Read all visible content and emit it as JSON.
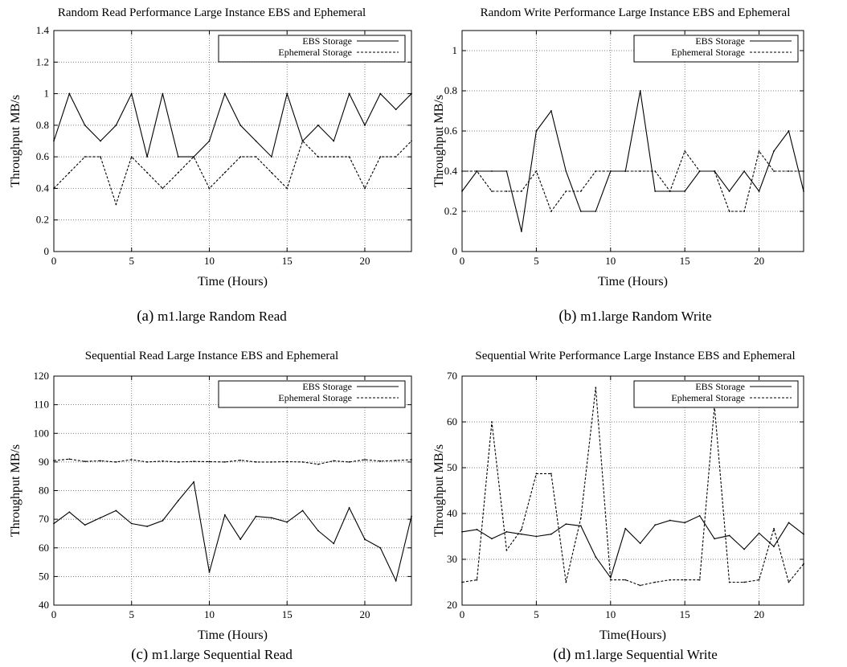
{
  "chart_data": [
    {
      "type": "line",
      "title": "Random Read Performance Large Instance EBS and Ephemeral",
      "xlabel": "Time (Hours)",
      "ylabel": "Throughput MB/s",
      "caption_letter": "(a)",
      "caption_text": "m1.large Random Read",
      "xlim": [
        0,
        23
      ],
      "ylim": [
        0,
        1.4
      ],
      "xticks": [
        0,
        5,
        10,
        15,
        20
      ],
      "yticks": [
        0,
        0.2,
        0.4,
        0.6,
        0.8,
        1,
        1.2,
        1.4
      ],
      "ytick_labels": [
        "0",
        "0.2",
        "0.4",
        "0.6",
        "0.8",
        "1",
        "1.2",
        "1.4"
      ],
      "grid": true,
      "legend_position": "top-right",
      "series": [
        {
          "name": "EBS Storage",
          "style": "solid",
          "x": [
            0,
            1,
            2,
            3,
            4,
            5,
            6,
            7,
            8,
            9,
            10,
            11,
            12,
            13,
            14,
            15,
            16,
            17,
            18,
            19,
            20,
            21,
            22,
            23
          ],
          "values": [
            0.7,
            1.0,
            0.8,
            0.7,
            0.8,
            1.0,
            0.6,
            1.0,
            0.6,
            0.6,
            0.7,
            1.0,
            0.8,
            0.7,
            0.6,
            1.0,
            0.7,
            0.8,
            0.7,
            1.0,
            0.8,
            1.0,
            0.9,
            1.0
          ]
        },
        {
          "name": "Ephemeral Storage",
          "style": "dashed",
          "x": [
            0,
            1,
            2,
            3,
            4,
            5,
            6,
            7,
            8,
            9,
            10,
            11,
            12,
            13,
            14,
            15,
            16,
            17,
            18,
            19,
            20,
            21,
            22,
            23
          ],
          "values": [
            0.4,
            0.5,
            0.6,
            0.6,
            0.3,
            0.6,
            0.5,
            0.4,
            0.5,
            0.6,
            0.4,
            0.5,
            0.6,
            0.6,
            0.5,
            0.4,
            0.7,
            0.6,
            0.6,
            0.6,
            0.4,
            0.6,
            0.6,
            0.7
          ]
        }
      ]
    },
    {
      "type": "line",
      "title": "Random Write Performance Large Instance EBS and Ephemeral",
      "xlabel": "Time (Hours)",
      "ylabel": "Throughput MB/s",
      "caption_letter": "(b)",
      "caption_text": "m1.large Random Write",
      "xlim": [
        0,
        23
      ],
      "ylim": [
        0,
        1.1
      ],
      "xticks": [
        0,
        5,
        10,
        15,
        20
      ],
      "yticks": [
        0,
        0.2,
        0.4,
        0.6,
        0.8,
        1
      ],
      "ytick_labels": [
        "0",
        "0.2",
        "0.4",
        "0.6",
        "0.8",
        "1"
      ],
      "grid": true,
      "legend_position": "top-right",
      "series": [
        {
          "name": "EBS Storage",
          "style": "solid",
          "x": [
            0,
            1,
            2,
            3,
            4,
            5,
            6,
            7,
            8,
            9,
            10,
            11,
            12,
            13,
            14,
            15,
            16,
            17,
            18,
            19,
            20,
            21,
            22,
            23
          ],
          "values": [
            0.3,
            0.4,
            0.4,
            0.4,
            0.1,
            0.6,
            0.7,
            0.4,
            0.2,
            0.2,
            0.4,
            0.4,
            0.8,
            0.3,
            0.3,
            0.3,
            0.4,
            0.4,
            0.3,
            0.4,
            0.3,
            0.5,
            0.6,
            0.3
          ]
        },
        {
          "name": "Ephemeral Storage",
          "style": "dashed",
          "x": [
            0,
            1,
            2,
            3,
            4,
            5,
            6,
            7,
            8,
            9,
            10,
            11,
            12,
            13,
            14,
            15,
            16,
            17,
            18,
            19,
            20,
            21,
            22,
            23
          ],
          "values": [
            0.4,
            0.4,
            0.3,
            0.3,
            0.3,
            0.4,
            0.2,
            0.3,
            0.3,
            0.4,
            0.4,
            0.4,
            0.4,
            0.4,
            0.3,
            0.5,
            0.4,
            0.4,
            0.2,
            0.2,
            0.5,
            0.4,
            0.4,
            0.4
          ]
        }
      ]
    },
    {
      "type": "line",
      "title": "Sequential Read Large Instance EBS and Ephemeral",
      "xlabel": "Time (Hours)",
      "ylabel": "Throughput MB/s",
      "caption_letter": "(c)",
      "caption_text": "m1.large Sequential Read",
      "xlim": [
        0,
        23
      ],
      "ylim": [
        40,
        120
      ],
      "xticks": [
        0,
        5,
        10,
        15,
        20
      ],
      "yticks": [
        40,
        50,
        60,
        70,
        80,
        90,
        100,
        110,
        120
      ],
      "ytick_labels": [
        "40",
        "50",
        "60",
        "70",
        "80",
        "90",
        "100",
        "110",
        "120"
      ],
      "grid": true,
      "legend_position": "top-right",
      "series": [
        {
          "name": "EBS Storage",
          "style": "solid",
          "x": [
            0,
            1,
            2,
            3,
            4,
            5,
            6,
            7,
            8,
            9,
            10,
            11,
            12,
            13,
            14,
            15,
            16,
            17,
            18,
            19,
            20,
            21,
            22,
            23
          ],
          "values": [
            68.5,
            72.5,
            68,
            70.5,
            73,
            68.5,
            67.5,
            69.5,
            76.5,
            83,
            51.5,
            71.5,
            63,
            71,
            70.5,
            69,
            73,
            66,
            61.5,
            74,
            63,
            60,
            48.5,
            71
          ]
        },
        {
          "name": "Ephemeral Storage",
          "style": "dashed",
          "x": [
            0,
            1,
            2,
            3,
            4,
            5,
            6,
            7,
            8,
            9,
            10,
            11,
            12,
            13,
            14,
            15,
            16,
            17,
            18,
            19,
            20,
            21,
            22,
            23
          ],
          "values": [
            90.5,
            91,
            90.2,
            90.4,
            90,
            90.8,
            90,
            90.3,
            90,
            90.2,
            90.1,
            90,
            90.6,
            90,
            90,
            90.1,
            90,
            89.2,
            90.4,
            90,
            90.8,
            90.3,
            90.5,
            90.8
          ]
        }
      ]
    },
    {
      "type": "line",
      "title": "Sequential Write Performance Large Instance EBS and Ephemeral",
      "xlabel": "Time(Hours)",
      "ylabel": "Throughput MB/s",
      "caption_letter": "(d)",
      "caption_text": "m1.large Sequential Write",
      "xlim": [
        0,
        23
      ],
      "ylim": [
        20,
        70
      ],
      "xticks": [
        0,
        5,
        10,
        15,
        20
      ],
      "yticks": [
        20,
        30,
        40,
        50,
        60,
        70
      ],
      "ytick_labels": [
        "20",
        "30",
        "40",
        "50",
        "60",
        "70"
      ],
      "grid": true,
      "legend_position": "top-right",
      "series": [
        {
          "name": "EBS Storage",
          "style": "solid",
          "x": [
            0,
            1,
            2,
            3,
            4,
            5,
            6,
            7,
            8,
            9,
            10,
            11,
            12,
            13,
            14,
            15,
            16,
            17,
            18,
            19,
            20,
            21,
            22,
            23
          ],
          "values": [
            36,
            36.5,
            34.5,
            36,
            35.5,
            35,
            35.5,
            37.7,
            37.3,
            30.5,
            26,
            36.7,
            33.5,
            37.5,
            38.5,
            38,
            39.5,
            34.5,
            35.2,
            32.2,
            35.7,
            32.8,
            38,
            35.5
          ]
        },
        {
          "name": "Ephemeral Storage",
          "style": "dashed",
          "x": [
            0,
            1,
            2,
            3,
            4,
            5,
            6,
            7,
            8,
            9,
            10,
            11,
            12,
            13,
            14,
            15,
            16,
            17,
            18,
            19,
            20,
            21,
            22,
            23
          ],
          "values": [
            25,
            25.5,
            60,
            32,
            36.5,
            48.7,
            48.7,
            25,
            39,
            67.5,
            25.5,
            25.5,
            24.3,
            25,
            25.5,
            25.5,
            25.5,
            63.5,
            25,
            25,
            25.5,
            36.7,
            25,
            29
          ]
        }
      ]
    }
  ]
}
